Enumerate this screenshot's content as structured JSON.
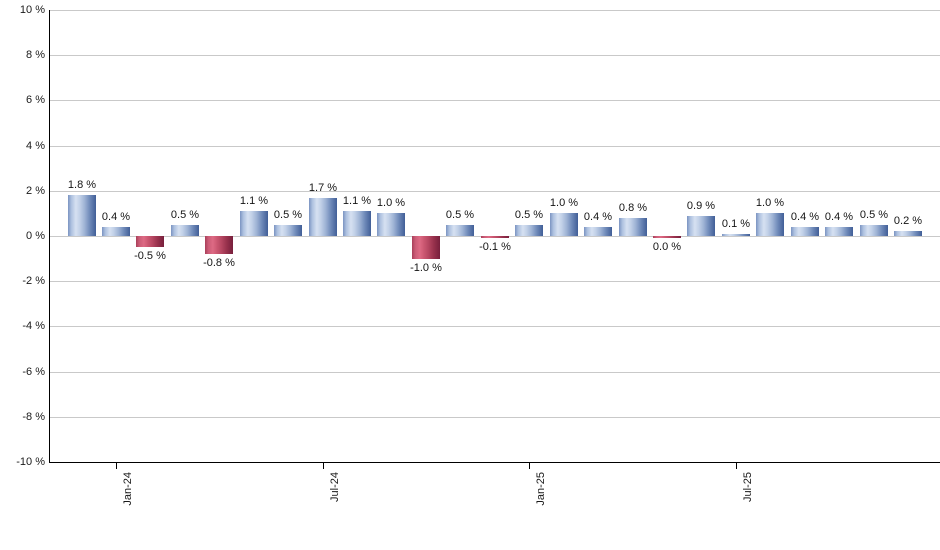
{
  "chart_data": {
    "type": "bar",
    "title": "",
    "unit": "%",
    "ylim": [
      -10,
      10
    ],
    "y_tick_step": 2,
    "grid": true,
    "legend": false,
    "y_ticks": [
      {
        "value": 10,
        "label": "10 %"
      },
      {
        "value": 8,
        "label": "8 %"
      },
      {
        "value": 6,
        "label": "6 %"
      },
      {
        "value": 4,
        "label": "4 %"
      },
      {
        "value": 2,
        "label": "2 %"
      },
      {
        "value": 0,
        "label": "0 %"
      },
      {
        "value": -2,
        "label": "-2 %"
      },
      {
        "value": -4,
        "label": "-4 %"
      },
      {
        "value": -6,
        "label": "-6 %"
      },
      {
        "value": -8,
        "label": "-8 %"
      },
      {
        "value": -10,
        "label": "-10 %"
      }
    ],
    "x_ticks": [
      {
        "label": "Jan-24",
        "bar_index": 1
      },
      {
        "label": "Jul-24",
        "bar_index": 7
      },
      {
        "label": "Jan-25",
        "bar_index": 13
      },
      {
        "label": "Jul-25",
        "bar_index": 19
      }
    ],
    "bars": [
      {
        "value": 1.8,
        "label": "1.8 %",
        "color": "blue",
        "label_position": "above"
      },
      {
        "value": 0.4,
        "label": "0.4 %",
        "color": "blue",
        "label_position": "above"
      },
      {
        "value": -0.5,
        "label": "-0.5 %",
        "color": "red",
        "label_position": "below"
      },
      {
        "value": 0.5,
        "label": "0.5 %",
        "color": "blue",
        "label_position": "above"
      },
      {
        "value": -0.8,
        "label": "-0.8 %",
        "color": "red",
        "label_position": "below"
      },
      {
        "value": 1.1,
        "label": "1.1 %",
        "color": "blue",
        "label_position": "above"
      },
      {
        "value": 0.5,
        "label": "0.5 %",
        "color": "blue",
        "label_position": "above"
      },
      {
        "value": 1.7,
        "label": "1.7 %",
        "color": "blue",
        "label_position": "above"
      },
      {
        "value": 1.1,
        "label": "1.1 %",
        "color": "blue",
        "label_position": "above"
      },
      {
        "value": 1.0,
        "label": "1.0 %",
        "color": "blue",
        "label_position": "above"
      },
      {
        "value": -1.0,
        "label": "-1.0 %",
        "color": "red",
        "label_position": "below"
      },
      {
        "value": 0.5,
        "label": "0.5 %",
        "color": "blue",
        "label_position": "above"
      },
      {
        "value": -0.1,
        "label": "-0.1 %",
        "color": "red",
        "label_position": "below"
      },
      {
        "value": 0.5,
        "label": "0.5 %",
        "color": "blue",
        "label_position": "above"
      },
      {
        "value": 1.0,
        "label": "1.0 %",
        "color": "blue",
        "label_position": "above"
      },
      {
        "value": 0.4,
        "label": "0.4 %",
        "color": "blue",
        "label_position": "above"
      },
      {
        "value": 0.8,
        "label": "0.8 %",
        "color": "blue",
        "label_position": "above"
      },
      {
        "value": 0.0,
        "label": "0.0 %",
        "color": "red",
        "label_position": "below"
      },
      {
        "value": 0.9,
        "label": "0.9 %",
        "color": "blue",
        "label_position": "above"
      },
      {
        "value": 0.1,
        "label": "0.1 %",
        "color": "blue",
        "label_position": "above"
      },
      {
        "value": 1.0,
        "label": "1.0 %",
        "color": "blue",
        "label_position": "above"
      },
      {
        "value": 0.4,
        "label": "0.4 %",
        "color": "blue",
        "label_position": "above"
      },
      {
        "value": 0.4,
        "label": "0.4 %",
        "color": "blue",
        "label_position": "above"
      },
      {
        "value": 0.5,
        "label": "0.5 %",
        "color": "blue",
        "label_position": "above"
      },
      {
        "value": 0.2,
        "label": "0.2 %",
        "color": "blue",
        "label_position": "above"
      }
    ],
    "colors": {
      "positive_bar": "#7b94c1",
      "positive_bar_highlight": "#d6e1f1",
      "positive_bar_dark": "#415e97",
      "negative_bar": "#cb5c77",
      "negative_bar_highlight": "#dd6a84",
      "negative_bar_dark": "#771f3c",
      "grid": "#c9c9c9",
      "axis": "#000000",
      "label_text": "#141414",
      "background": "#ffffff"
    }
  }
}
